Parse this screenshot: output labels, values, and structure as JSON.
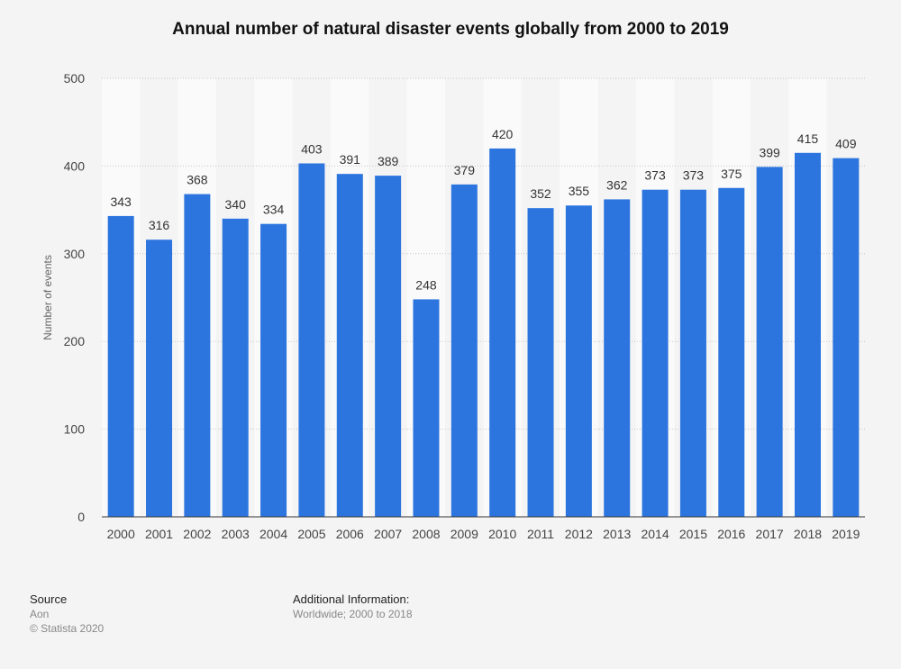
{
  "chart_data": {
    "type": "bar",
    "title": "Annual number of natural disaster events globally from 2000 to 2019",
    "xlabel": "",
    "ylabel": "Number of events",
    "categories": [
      "2000",
      "2001",
      "2002",
      "2003",
      "2004",
      "2005",
      "2006",
      "2007",
      "2008",
      "2009",
      "2010",
      "2011",
      "2012",
      "2013",
      "2014",
      "2015",
      "2016",
      "2017",
      "2018",
      "2019"
    ],
    "values": [
      343,
      316,
      368,
      340,
      334,
      403,
      391,
      389,
      248,
      379,
      420,
      352,
      355,
      362,
      373,
      373,
      375,
      399,
      415,
      409
    ],
    "ylim": [
      0,
      500
    ],
    "yticks": [
      0,
      100,
      200,
      300,
      400,
      500
    ],
    "grid": true,
    "bar_color": "#2c75df"
  },
  "footer": {
    "source_heading": "Source",
    "source_name": "Aon",
    "copyright": "© Statista 2020",
    "additional_heading": "Additional Information:",
    "additional_text": "Worldwide; 2000 to 2018"
  }
}
